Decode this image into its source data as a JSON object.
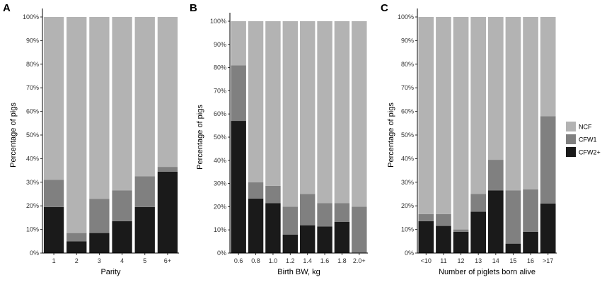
{
  "chart_data": [
    {
      "panel": "A",
      "type": "bar",
      "stacked": true,
      "title": "",
      "xlabel": "Parity",
      "ylabel": "Percentage of pigs",
      "ylim": [
        0,
        100
      ],
      "yticks": [
        "0%",
        "10%",
        "20%",
        "30%",
        "40%",
        "50%",
        "60%",
        "70%",
        "80%",
        "90%",
        "100%"
      ],
      "categories": [
        "1",
        "2",
        "3",
        "4",
        "5",
        "6+"
      ],
      "series": [
        {
          "name": "CFW2+",
          "values": [
            19.5,
            5,
            8.5,
            13.5,
            19.5,
            34.5
          ]
        },
        {
          "name": "CFW1",
          "values": [
            11.5,
            3.5,
            14.5,
            13,
            13,
            2
          ]
        },
        {
          "name": "NCF",
          "values": [
            69,
            91.5,
            77,
            73.5,
            67.5,
            63.5
          ]
        }
      ]
    },
    {
      "panel": "B",
      "type": "bar",
      "stacked": true,
      "title": "",
      "xlabel": "Birth BW, kg",
      "ylabel": "Percentage of pigs",
      "ylim": [
        0,
        100
      ],
      "yticks": [
        "0%",
        "10%",
        "20%",
        "30%",
        "40%",
        "50%",
        "60%",
        "70%",
        "80%",
        "90%",
        "100%"
      ],
      "categories": [
        "0.6",
        "0.8",
        "1.0",
        "1.2",
        "1.4",
        "1.6",
        "1.8",
        "2.0+"
      ],
      "series": [
        {
          "name": "CFW2+",
          "values": [
            57,
            23.5,
            21.5,
            8,
            12,
            11.5,
            13.5,
            0
          ]
        },
        {
          "name": "CFW1",
          "values": [
            24,
            7,
            7.5,
            12,
            13.5,
            10,
            8,
            20
          ]
        },
        {
          "name": "NCF",
          "values": [
            19,
            69.5,
            71,
            80,
            74.5,
            78.5,
            78.5,
            80
          ]
        }
      ]
    },
    {
      "panel": "C",
      "type": "bar",
      "stacked": true,
      "title": "",
      "xlabel": "Number of piglets born alive",
      "ylabel": "Percentage of pigs",
      "ylim": [
        0,
        100
      ],
      "yticks": [
        "0%",
        "10%",
        "20%",
        "30%",
        "40%",
        "50%",
        "60%",
        "70%",
        "80%",
        "90%",
        "100%"
      ],
      "categories": [
        "<10",
        "11",
        "12",
        "13",
        "14",
        "15",
        "16",
        ">17"
      ],
      "series": [
        {
          "name": "CFW2+",
          "values": [
            13.5,
            11.5,
            9,
            17.5,
            26.5,
            4,
            9,
            21
          ]
        },
        {
          "name": "CFW1",
          "values": [
            3,
            5,
            1,
            7.5,
            13,
            22.5,
            18,
            37
          ]
        },
        {
          "name": "NCF",
          "values": [
            83.5,
            83.5,
            90,
            75,
            60.5,
            73.5,
            73,
            42
          ]
        }
      ]
    }
  ],
  "legend": {
    "items": [
      {
        "name": "NCF",
        "color": "#b3b3b3"
      },
      {
        "name": "CFW1",
        "color": "#808080"
      },
      {
        "name": "CFW2+",
        "color": "#1a1a1a"
      }
    ]
  },
  "colors": {
    "NCF": "#b3b3b3",
    "CFW1": "#808080",
    "CFW2+": "#1a1a1a"
  }
}
